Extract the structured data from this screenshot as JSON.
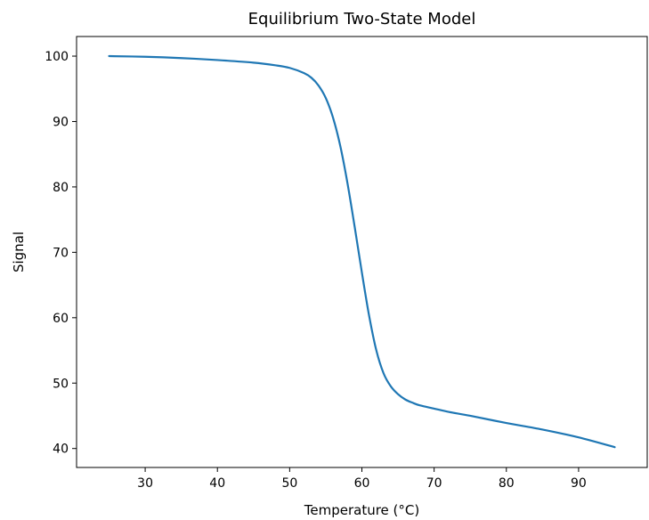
{
  "chart_data": {
    "type": "line",
    "title": "Equilibrium Two-State Model",
    "xlabel": "Temperature (°C)",
    "ylabel": "Signal",
    "xlim": [
      20.5,
      99.5
    ],
    "ylim": [
      37.1,
      103.0
    ],
    "xticks": [
      30,
      40,
      50,
      60,
      70,
      80,
      90
    ],
    "yticks": [
      40,
      50,
      60,
      70,
      80,
      90,
      100
    ],
    "grid": false,
    "legend": "none",
    "series": [
      {
        "color": "#1f77b4",
        "x": [
          25,
          30,
          35,
          40,
          45,
          48,
          50,
          52,
          53,
          54,
          55,
          56,
          57,
          58,
          59,
          60,
          61,
          62,
          63,
          64,
          65,
          66,
          67,
          68,
          70,
          72,
          75,
          80,
          85,
          90,
          95
        ],
        "y": [
          100.0,
          99.9,
          99.7,
          99.4,
          99.0,
          98.6,
          98.2,
          97.4,
          96.7,
          95.5,
          93.6,
          90.6,
          86.3,
          80.6,
          73.9,
          66.9,
          60.3,
          55.0,
          51.5,
          49.5,
          48.3,
          47.5,
          47.0,
          46.6,
          46.1,
          45.6,
          45.0,
          43.9,
          42.9,
          41.7,
          40.2
        ]
      }
    ]
  }
}
